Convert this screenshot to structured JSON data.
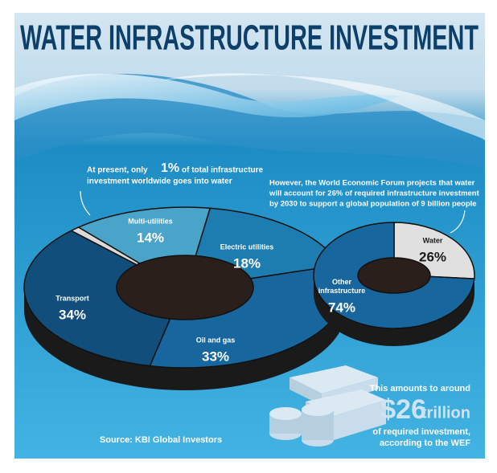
{
  "title": "WATER INFRASTRUCTURE INVESTMENT",
  "source": "Source: KBI Global Investors",
  "callout": {
    "intro": "This amounts to around",
    "amount": "$26",
    "unit": "trillion",
    "outro_lines": [
      "of required investment,",
      "according to the WEF"
    ]
  },
  "chart_data": [
    {
      "type": "donut",
      "annotation_lines": [
        [
          "At present, only",
          "of total infrastructure"
        ],
        [
          "investment worldwide goes into water"
        ]
      ],
      "categories": [
        null,
        "Multi-utilities",
        "Electric utilities",
        "Oil and gas",
        "Transport"
      ],
      "values": [
        1,
        14,
        18,
        33,
        34
      ],
      "value_labels": [
        "1%",
        "14%",
        "18%",
        "33%",
        "34%"
      ],
      "colors": [
        "#d9d9d9",
        "#4aa3c8",
        "#1d7db1",
        "#17679e",
        "#124e7c"
      ]
    },
    {
      "type": "donut",
      "annotation_lines": [
        "However, the World Economic Forum projects that water",
        "will account for 26% of required infrastructure investment",
        "by 2030 to support a global population of 9 billion people"
      ],
      "categories": [
        "Water",
        "Other infrastructure"
      ],
      "values": [
        26,
        74
      ],
      "value_labels": [
        "26%",
        "74%"
      ],
      "colors": [
        "#e0e0e0",
        "#17679e"
      ]
    }
  ]
}
